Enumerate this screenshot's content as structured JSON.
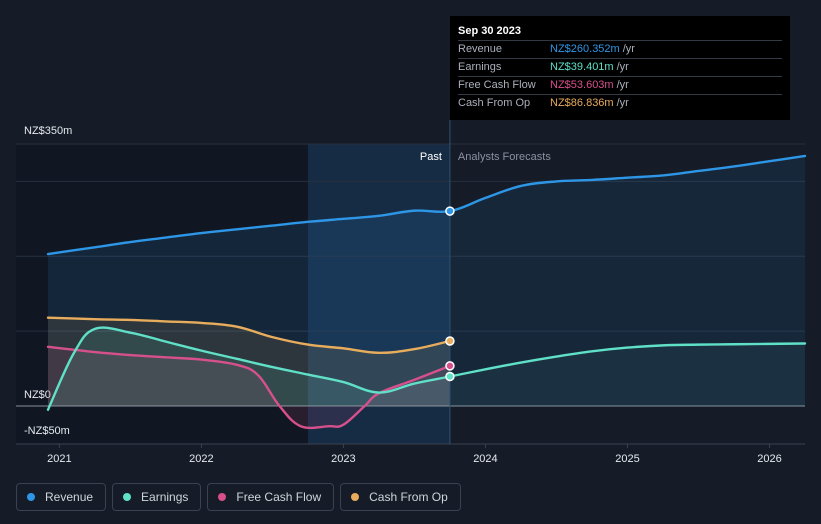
{
  "chart_data": {
    "type": "line",
    "currency_note": "NZ$",
    "y_labels": [
      "NZ$350m",
      "NZ$0",
      "-NZ$50m"
    ],
    "ylim": [
      -50,
      350
    ],
    "x_ticks": [
      "2021",
      "2022",
      "2023",
      "2024",
      "2025",
      "2026"
    ],
    "xlim": [
      2020.92,
      2026.25
    ],
    "past_label": "Past",
    "forecast_label": "Analysts Forecasts",
    "divider_x": 2023.75,
    "highlight_start": 2022.75,
    "series": [
      {
        "name": "Revenue",
        "color": "#2e96e6",
        "points": [
          [
            2020.92,
            203
          ],
          [
            2021.25,
            212
          ],
          [
            2021.5,
            219
          ],
          [
            2021.75,
            225
          ],
          [
            2022.0,
            231
          ],
          [
            2022.25,
            236
          ],
          [
            2022.5,
            241
          ],
          [
            2022.75,
            246
          ],
          [
            2023.0,
            250
          ],
          [
            2023.25,
            254
          ],
          [
            2023.5,
            261
          ],
          [
            2023.75,
            260.352
          ],
          [
            2024.0,
            278
          ],
          [
            2024.25,
            294
          ],
          [
            2024.5,
            300
          ],
          [
            2024.75,
            302
          ],
          [
            2025.0,
            305
          ],
          [
            2025.25,
            308
          ],
          [
            2025.5,
            314
          ],
          [
            2025.75,
            320
          ],
          [
            2026.0,
            327
          ],
          [
            2026.25,
            334
          ]
        ],
        "forecast_from": 2023.75
      },
      {
        "name": "Earnings",
        "color": "#5fe0c7",
        "points": [
          [
            2020.92,
            -5
          ],
          [
            2021.1,
            70
          ],
          [
            2021.25,
            103
          ],
          [
            2021.5,
            98
          ],
          [
            2021.75,
            86
          ],
          [
            2022.0,
            74
          ],
          [
            2022.25,
            63
          ],
          [
            2022.5,
            52
          ],
          [
            2022.75,
            42
          ],
          [
            2023.0,
            32
          ],
          [
            2023.25,
            18
          ],
          [
            2023.5,
            30
          ],
          [
            2023.75,
            39.401
          ],
          [
            2024.0,
            49
          ],
          [
            2024.25,
            58
          ],
          [
            2024.5,
            66
          ],
          [
            2024.75,
            73
          ],
          [
            2025.0,
            78
          ],
          [
            2025.25,
            81
          ],
          [
            2025.5,
            82
          ],
          [
            2025.75,
            82.5
          ],
          [
            2026.0,
            83
          ],
          [
            2026.25,
            83.5
          ]
        ],
        "forecast_from": 2023.75
      },
      {
        "name": "Free Cash Flow",
        "color": "#d6508c",
        "points": [
          [
            2020.92,
            79
          ],
          [
            2021.25,
            72
          ],
          [
            2021.5,
            68
          ],
          [
            2021.75,
            65
          ],
          [
            2022.0,
            62
          ],
          [
            2022.25,
            55
          ],
          [
            2022.4,
            41
          ],
          [
            2022.55,
            0
          ],
          [
            2022.7,
            -27
          ],
          [
            2022.9,
            -27
          ],
          [
            2023.0,
            -25
          ],
          [
            2023.15,
            0
          ],
          [
            2023.25,
            17
          ],
          [
            2023.5,
            35
          ],
          [
            2023.75,
            53.603
          ]
        ]
      },
      {
        "name": "Cash From Op",
        "color": "#e8ac5d",
        "points": [
          [
            2020.92,
            118
          ],
          [
            2021.25,
            116
          ],
          [
            2021.5,
            115
          ],
          [
            2021.75,
            113
          ],
          [
            2022.0,
            111
          ],
          [
            2022.25,
            106
          ],
          [
            2022.5,
            92
          ],
          [
            2022.75,
            82
          ],
          [
            2023.0,
            77
          ],
          [
            2023.25,
            71
          ],
          [
            2023.5,
            76
          ],
          [
            2023.75,
            86.836
          ]
        ]
      }
    ]
  },
  "tooltip": {
    "date": "Sep 30 2023",
    "rows": [
      {
        "label": "Revenue",
        "value": "NZ$260.352m",
        "unit": "/yr",
        "color": "#2e96e6"
      },
      {
        "label": "Earnings",
        "value": "NZ$39.401m",
        "unit": "/yr",
        "color": "#5fe0c7"
      },
      {
        "label": "Free Cash Flow",
        "value": "NZ$53.603m",
        "unit": "/yr",
        "color": "#d6508c"
      },
      {
        "label": "Cash From Op",
        "value": "NZ$86.836m",
        "unit": "/yr",
        "color": "#e8ac5d"
      }
    ]
  },
  "legend": [
    {
      "label": "Revenue",
      "color": "#2e96e6"
    },
    {
      "label": "Earnings",
      "color": "#5fe0c7"
    },
    {
      "label": "Free Cash Flow",
      "color": "#d6508c"
    },
    {
      "label": "Cash From Op",
      "color": "#e8ac5d"
    }
  ]
}
